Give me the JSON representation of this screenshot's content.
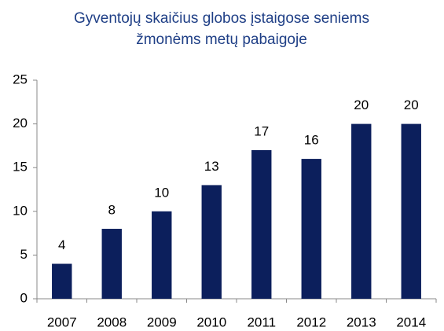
{
  "chart_data": {
    "type": "bar",
    "title": "Gyventojų skaičius globos įstaigose seniems žmonėms metų pabaigoje",
    "categories": [
      "2007",
      "2008",
      "2009",
      "2010",
      "2011",
      "2012",
      "2013",
      "2014"
    ],
    "values": [
      4,
      8,
      10,
      13,
      17,
      16,
      20,
      20
    ],
    "color": "#0c1f5c",
    "ylim": [
      0,
      25
    ],
    "yticks": [
      0,
      5,
      10,
      15,
      20,
      25
    ],
    "grid": false
  }
}
